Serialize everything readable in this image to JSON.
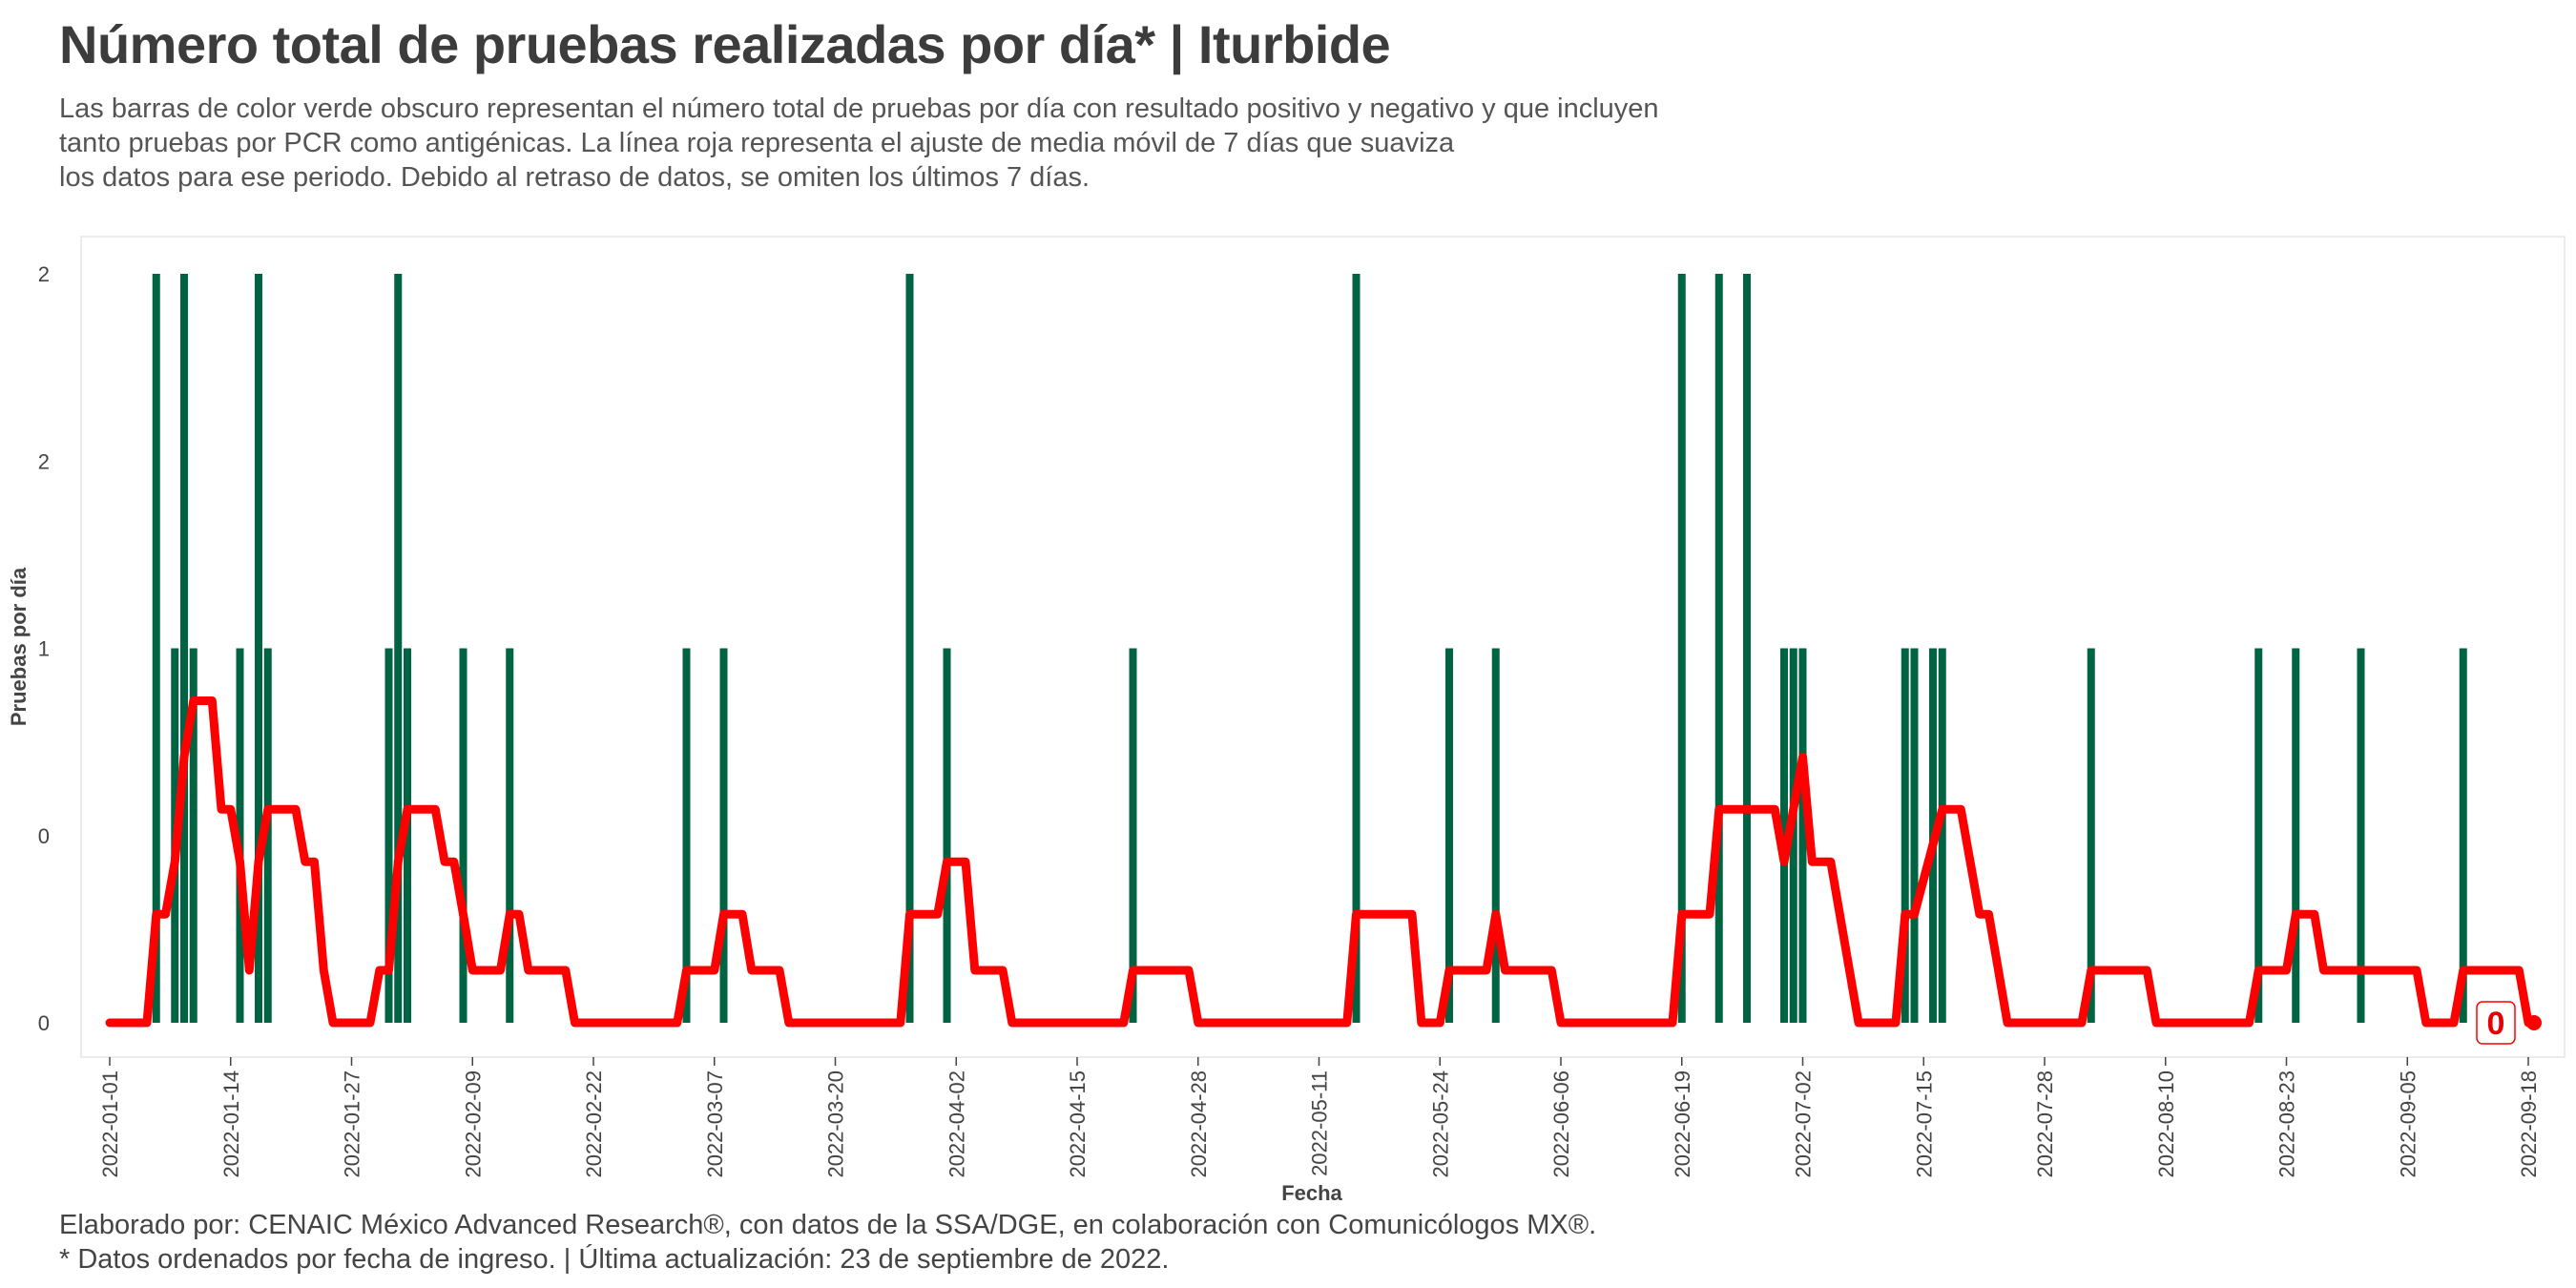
{
  "header": {
    "title": "Número total de pruebas realizadas por día* | Iturbide",
    "subtitle_lines": [
      "Las barras de color verde obscuro representan el número total de pruebas por día con resultado positivo y negativo y que incluyen",
      "tanto pruebas por PCR como antigénicas. La línea roja representa el ajuste de media móvil de 7 días que suaviza",
      "los datos para ese periodo. Debido al retraso de datos, se omiten los últimos 7 días."
    ]
  },
  "caption_lines": [
    "Elaborado por: CENAIC México Advanced Research®, con datos de la SSA/DGE, en colaboración con Comunicólogos MX®.",
    "* Datos ordenados por fecha de ingreso. | Última actualización: 23 de septiembre de 2022."
  ],
  "chart_data": {
    "type": "bar",
    "xlabel": "Fecha",
    "ylabel": "Pruebas por día",
    "x_start": "2022-01-01",
    "x_end": "2022-09-18",
    "x_ticks": [
      "2022-01-01",
      "2022-01-14",
      "2022-01-27",
      "2022-02-09",
      "2022-02-22",
      "2022-03-07",
      "2022-03-20",
      "2022-04-02",
      "2022-04-15",
      "2022-04-28",
      "2022-05-11",
      "2022-05-24",
      "2022-06-06",
      "2022-06-19",
      "2022-07-02",
      "2022-07-15",
      "2022-07-28",
      "2022-08-10",
      "2022-08-23",
      "2022-09-05",
      "2022-09-18"
    ],
    "y_ticks": [
      {
        "value": 0,
        "label": "0"
      },
      {
        "value": 0.5,
        "label": "0"
      },
      {
        "value": 1,
        "label": "1"
      },
      {
        "value": 1.5,
        "label": "2"
      },
      {
        "value": 2,
        "label": "2"
      }
    ],
    "ylim": [
      0,
      2
    ],
    "grid": false,
    "bar_color": "#006341",
    "line_color": "#ff0000",
    "bars": [
      {
        "date": "2022-01-06",
        "value": 2
      },
      {
        "date": "2022-01-08",
        "value": 1
      },
      {
        "date": "2022-01-09",
        "value": 2
      },
      {
        "date": "2022-01-10",
        "value": 1
      },
      {
        "date": "2022-01-15",
        "value": 1
      },
      {
        "date": "2022-01-17",
        "value": 2
      },
      {
        "date": "2022-01-18",
        "value": 1
      },
      {
        "date": "2022-01-31",
        "value": 1
      },
      {
        "date": "2022-02-01",
        "value": 2
      },
      {
        "date": "2022-02-02",
        "value": 1
      },
      {
        "date": "2022-02-08",
        "value": 1
      },
      {
        "date": "2022-02-13",
        "value": 1
      },
      {
        "date": "2022-03-04",
        "value": 1
      },
      {
        "date": "2022-03-08",
        "value": 1
      },
      {
        "date": "2022-03-28",
        "value": 2
      },
      {
        "date": "2022-04-01",
        "value": 1
      },
      {
        "date": "2022-04-21",
        "value": 1
      },
      {
        "date": "2022-05-15",
        "value": 2
      },
      {
        "date": "2022-05-25",
        "value": 1
      },
      {
        "date": "2022-05-30",
        "value": 1
      },
      {
        "date": "2022-06-19",
        "value": 2
      },
      {
        "date": "2022-06-23",
        "value": 2
      },
      {
        "date": "2022-06-26",
        "value": 2
      },
      {
        "date": "2022-06-30",
        "value": 1
      },
      {
        "date": "2022-07-01",
        "value": 1
      },
      {
        "date": "2022-07-02",
        "value": 1
      },
      {
        "date": "2022-07-13",
        "value": 1
      },
      {
        "date": "2022-07-14",
        "value": 1
      },
      {
        "date": "2022-07-16",
        "value": 1
      },
      {
        "date": "2022-07-17",
        "value": 1
      },
      {
        "date": "2022-08-02",
        "value": 1
      },
      {
        "date": "2022-08-20",
        "value": 1
      },
      {
        "date": "2022-08-24",
        "value": 1
      },
      {
        "date": "2022-08-31",
        "value": 1
      },
      {
        "date": "2022-09-11",
        "value": 1
      }
    ],
    "moving_average": [
      [
        "2022-01-01",
        0.0
      ],
      [
        "2022-01-05",
        0.0
      ],
      [
        "2022-01-06",
        0.29
      ],
      [
        "2022-01-07",
        0.29
      ],
      [
        "2022-01-08",
        0.43
      ],
      [
        "2022-01-09",
        0.71
      ],
      [
        "2022-01-10",
        0.86
      ],
      [
        "2022-01-12",
        0.86
      ],
      [
        "2022-01-13",
        0.57
      ],
      [
        "2022-01-14",
        0.57
      ],
      [
        "2022-01-15",
        0.43
      ],
      [
        "2022-01-16",
        0.14
      ],
      [
        "2022-01-17",
        0.43
      ],
      [
        "2022-01-18",
        0.57
      ],
      [
        "2022-01-21",
        0.57
      ],
      [
        "2022-01-22",
        0.43
      ],
      [
        "2022-01-23",
        0.43
      ],
      [
        "2022-01-24",
        0.14
      ],
      [
        "2022-01-25",
        0.0
      ],
      [
        "2022-01-29",
        0.0
      ],
      [
        "2022-01-30",
        0.14
      ],
      [
        "2022-01-31",
        0.14
      ],
      [
        "2022-02-01",
        0.43
      ],
      [
        "2022-02-02",
        0.57
      ],
      [
        "2022-02-05",
        0.57
      ],
      [
        "2022-02-06",
        0.43
      ],
      [
        "2022-02-07",
        0.43
      ],
      [
        "2022-02-08",
        0.29
      ],
      [
        "2022-02-09",
        0.14
      ],
      [
        "2022-02-12",
        0.14
      ],
      [
        "2022-02-13",
        0.29
      ],
      [
        "2022-02-14",
        0.29
      ],
      [
        "2022-02-15",
        0.14
      ],
      [
        "2022-02-19",
        0.14
      ],
      [
        "2022-02-20",
        0.0
      ],
      [
        "2022-03-03",
        0.0
      ],
      [
        "2022-03-04",
        0.14
      ],
      [
        "2022-03-07",
        0.14
      ],
      [
        "2022-03-08",
        0.29
      ],
      [
        "2022-03-10",
        0.29
      ],
      [
        "2022-03-11",
        0.14
      ],
      [
        "2022-03-14",
        0.14
      ],
      [
        "2022-03-15",
        0.0
      ],
      [
        "2022-03-27",
        0.0
      ],
      [
        "2022-03-28",
        0.29
      ],
      [
        "2022-03-31",
        0.29
      ],
      [
        "2022-04-01",
        0.43
      ],
      [
        "2022-04-03",
        0.43
      ],
      [
        "2022-04-04",
        0.14
      ],
      [
        "2022-04-07",
        0.14
      ],
      [
        "2022-04-08",
        0.0
      ],
      [
        "2022-04-20",
        0.0
      ],
      [
        "2022-04-21",
        0.14
      ],
      [
        "2022-04-27",
        0.14
      ],
      [
        "2022-04-28",
        0.0
      ],
      [
        "2022-05-14",
        0.0
      ],
      [
        "2022-05-15",
        0.29
      ],
      [
        "2022-05-21",
        0.29
      ],
      [
        "2022-05-22",
        0.0
      ],
      [
        "2022-05-24",
        0.0
      ],
      [
        "2022-05-25",
        0.14
      ],
      [
        "2022-05-29",
        0.14
      ],
      [
        "2022-05-30",
        0.29
      ],
      [
        "2022-05-31",
        0.14
      ],
      [
        "2022-06-05",
        0.14
      ],
      [
        "2022-06-06",
        0.0
      ],
      [
        "2022-06-18",
        0.0
      ],
      [
        "2022-06-19",
        0.29
      ],
      [
        "2022-06-22",
        0.29
      ],
      [
        "2022-06-23",
        0.57
      ],
      [
        "2022-06-29",
        0.57
      ],
      [
        "2022-06-30",
        0.43
      ],
      [
        "2022-07-02",
        0.71
      ],
      [
        "2022-07-03",
        0.43
      ],
      [
        "2022-07-05",
        0.43
      ],
      [
        "2022-07-08",
        0.0
      ],
      [
        "2022-07-12",
        0.0
      ],
      [
        "2022-07-13",
        0.29
      ],
      [
        "2022-07-14",
        0.29
      ],
      [
        "2022-07-17",
        0.57
      ],
      [
        "2022-07-19",
        0.57
      ],
      [
        "2022-07-21",
        0.29
      ],
      [
        "2022-07-22",
        0.29
      ],
      [
        "2022-07-24",
        0.0
      ],
      [
        "2022-08-01",
        0.0
      ],
      [
        "2022-08-02",
        0.14
      ],
      [
        "2022-08-08",
        0.14
      ],
      [
        "2022-08-09",
        0.0
      ],
      [
        "2022-08-19",
        0.0
      ],
      [
        "2022-08-20",
        0.14
      ],
      [
        "2022-08-23",
        0.14
      ],
      [
        "2022-08-24",
        0.29
      ],
      [
        "2022-08-26",
        0.29
      ],
      [
        "2022-08-27",
        0.14
      ],
      [
        "2022-09-06",
        0.14
      ],
      [
        "2022-09-07",
        0.0
      ],
      [
        "2022-09-10",
        0.0
      ],
      [
        "2022-09-11",
        0.14
      ],
      [
        "2022-09-17",
        0.14
      ],
      [
        "2022-09-18",
        0.0
      ]
    ],
    "last_value_label": "0"
  }
}
